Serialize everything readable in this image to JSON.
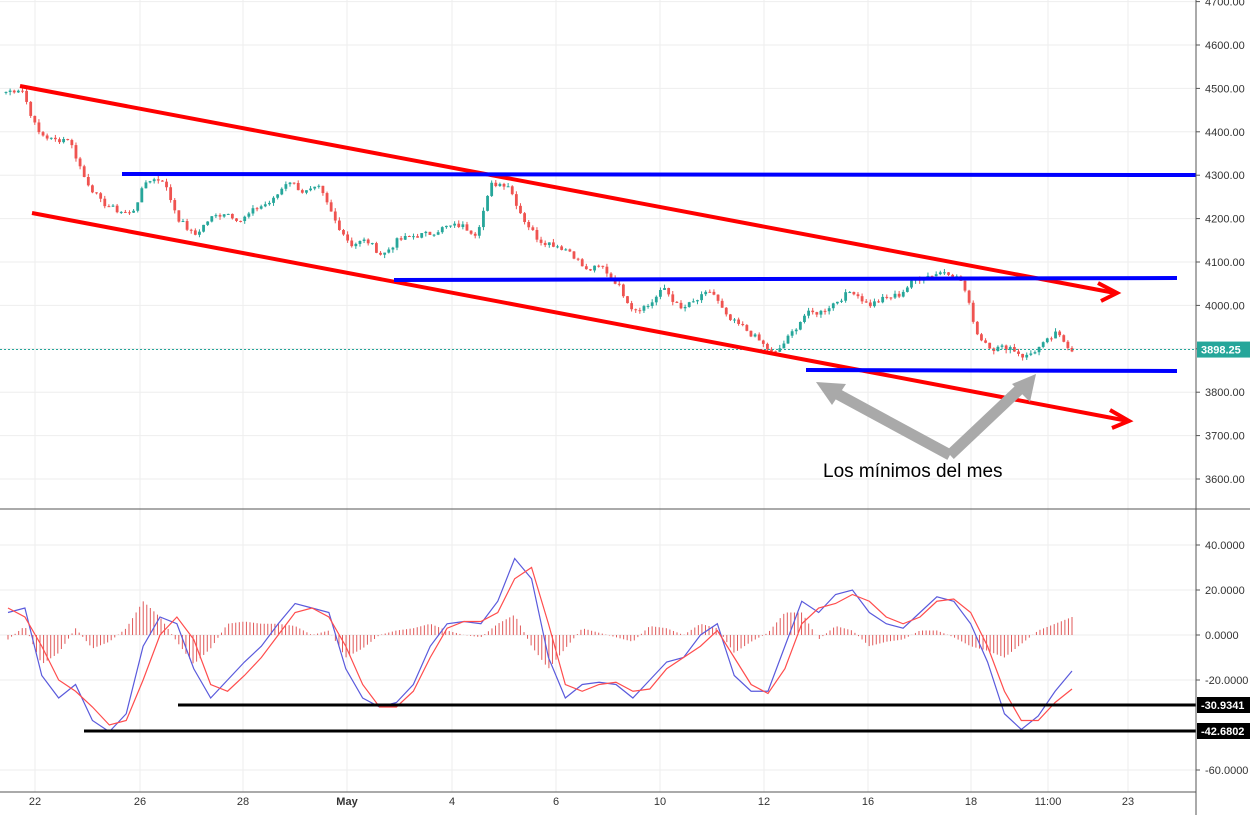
{
  "chart_data": {
    "price_panel": {
      "type": "candlestick",
      "yticks": [
        "4700.00",
        "4600.00",
        "4500.00",
        "4400.00",
        "4300.00",
        "4200.00",
        "4100.00",
        "4000.00",
        "3900.00",
        "3800.00",
        "3700.00",
        "3600.00"
      ],
      "ytick_values": [
        4700,
        4600,
        4500,
        4400,
        4300,
        4200,
        4100,
        4000,
        3900,
        3800,
        3700,
        3600
      ],
      "ylim": [
        3535,
        4715
      ],
      "last_price": "3898.25",
      "last_price_value": 3898.25,
      "annotation": "Los mínimos del mes",
      "series_close_path": [
        [
          0,
          4492
        ],
        [
          1,
          4500
        ],
        [
          2,
          4400
        ],
        [
          3,
          4380
        ],
        [
          4,
          4385
        ],
        [
          5,
          4295
        ],
        [
          6,
          4240
        ],
        [
          7,
          4220
        ],
        [
          8,
          4210
        ],
        [
          9,
          4290
        ],
        [
          10,
          4290
        ],
        [
          11,
          4200
        ],
        [
          12,
          4160
        ],
        [
          13,
          4200
        ],
        [
          14,
          4215
        ],
        [
          15,
          4195
        ],
        [
          16,
          4225
        ],
        [
          17,
          4240
        ],
        [
          18,
          4290
        ],
        [
          19,
          4260
        ],
        [
          20,
          4270
        ],
        [
          21,
          4195
        ],
        [
          22,
          4140
        ],
        [
          23,
          4150
        ],
        [
          24,
          4115
        ],
        [
          25,
          4150
        ],
        [
          26,
          4160
        ],
        [
          27,
          4165
        ],
        [
          28,
          4180
        ],
        [
          29,
          4185
        ],
        [
          30,
          4165
        ],
        [
          31,
          4280
        ],
        [
          32,
          4280
        ],
        [
          33,
          4200
        ],
        [
          34,
          4150
        ],
        [
          35,
          4140
        ],
        [
          36,
          4125
        ],
        [
          37,
          4080
        ],
        [
          38,
          4090
        ],
        [
          39,
          4050
        ],
        [
          40,
          3990
        ],
        [
          41,
          4000
        ],
        [
          42,
          4040
        ],
        [
          43,
          3990
        ],
        [
          44,
          4010
        ],
        [
          45,
          4035
        ],
        [
          46,
          3970
        ],
        [
          47,
          3950
        ],
        [
          48,
          3920
        ],
        [
          49,
          3885
        ],
        [
          50,
          3930
        ],
        [
          51,
          3980
        ],
        [
          52,
          3985
        ],
        [
          53,
          4010
        ],
        [
          54,
          4035
        ],
        [
          55,
          4000
        ],
        [
          56,
          4015
        ],
        [
          57,
          4025
        ],
        [
          58,
          4060
        ],
        [
          59,
          4070
        ],
        [
          60,
          4080
        ],
        [
          61,
          4055
        ],
        [
          62,
          3930
        ],
        [
          63,
          3900
        ],
        [
          64,
          3905
        ],
        [
          65,
          3880
        ],
        [
          66,
          3905
        ],
        [
          67,
          3935
        ],
        [
          68,
          3898
        ]
      ]
    },
    "indicator_panel": {
      "type": "macd",
      "yticks": [
        "40.0000",
        "20.0000",
        "0.0000",
        "-20.0000",
        "-60.0000"
      ],
      "ytick_values": [
        40,
        20,
        0,
        -20,
        -60
      ],
      "ylim": [
        -70,
        55
      ],
      "level_labels": [
        "-30.9341",
        "-42.6802"
      ],
      "level_values": [
        -30.9341,
        -42.6802
      ],
      "macd_series": [
        [
          0,
          10
        ],
        [
          1,
          12
        ],
        [
          2,
          -18
        ],
        [
          3,
          -28
        ],
        [
          4,
          -22
        ],
        [
          5,
          -38
        ],
        [
          6,
          -43
        ],
        [
          7,
          -35
        ],
        [
          8,
          -5
        ],
        [
          9,
          8
        ],
        [
          10,
          5
        ],
        [
          11,
          -15
        ],
        [
          12,
          -28
        ],
        [
          13,
          -20
        ],
        [
          14,
          -12
        ],
        [
          15,
          -5
        ],
        [
          16,
          5
        ],
        [
          17,
          14
        ],
        [
          18,
          12
        ],
        [
          19,
          10
        ],
        [
          20,
          -15
        ],
        [
          21,
          -28
        ],
        [
          22,
          -32
        ],
        [
          23,
          -30
        ],
        [
          24,
          -22
        ],
        [
          25,
          -5
        ],
        [
          26,
          5
        ],
        [
          27,
          6
        ],
        [
          28,
          5
        ],
        [
          29,
          15
        ],
        [
          30,
          34
        ],
        [
          31,
          25
        ],
        [
          32,
          -10
        ],
        [
          33,
          -28
        ],
        [
          34,
          -22
        ],
        [
          35,
          -21
        ],
        [
          36,
          -22
        ],
        [
          37,
          -28
        ],
        [
          38,
          -20
        ],
        [
          39,
          -12
        ],
        [
          40,
          -10
        ],
        [
          41,
          0
        ],
        [
          42,
          5
        ],
        [
          43,
          -18
        ],
        [
          44,
          -25
        ],
        [
          45,
          -25
        ],
        [
          46,
          -5
        ],
        [
          47,
          15
        ],
        [
          48,
          10
        ],
        [
          49,
          18
        ],
        [
          50,
          20
        ],
        [
          51,
          10
        ],
        [
          52,
          5
        ],
        [
          53,
          3
        ],
        [
          54,
          10
        ],
        [
          55,
          17
        ],
        [
          56,
          15
        ],
        [
          57,
          5
        ],
        [
          58,
          -12
        ],
        [
          59,
          -35
        ],
        [
          60,
          -42
        ],
        [
          61,
          -36
        ],
        [
          62,
          -25
        ],
        [
          63,
          -16
        ]
      ],
      "signal_series": [
        [
          0,
          12
        ],
        [
          1,
          8
        ],
        [
          2,
          -5
        ],
        [
          3,
          -20
        ],
        [
          4,
          -25
        ],
        [
          5,
          -32
        ],
        [
          6,
          -40
        ],
        [
          7,
          -38
        ],
        [
          8,
          -20
        ],
        [
          9,
          0
        ],
        [
          10,
          8
        ],
        [
          11,
          -2
        ],
        [
          12,
          -22
        ],
        [
          13,
          -25
        ],
        [
          14,
          -18
        ],
        [
          15,
          -10
        ],
        [
          16,
          0
        ],
        [
          17,
          10
        ],
        [
          18,
          12
        ],
        [
          19,
          8
        ],
        [
          20,
          -5
        ],
        [
          21,
          -22
        ],
        [
          22,
          -32
        ],
        [
          23,
          -32
        ],
        [
          24,
          -25
        ],
        [
          25,
          -10
        ],
        [
          26,
          3
        ],
        [
          27,
          6
        ],
        [
          28,
          6
        ],
        [
          29,
          10
        ],
        [
          30,
          25
        ],
        [
          31,
          30
        ],
        [
          32,
          5
        ],
        [
          33,
          -22
        ],
        [
          34,
          -25
        ],
        [
          35,
          -22
        ],
        [
          36,
          -21
        ],
        [
          37,
          -25
        ],
        [
          38,
          -24
        ],
        [
          39,
          -15
        ],
        [
          40,
          -10
        ],
        [
          41,
          -5
        ],
        [
          42,
          2
        ],
        [
          43,
          -10
        ],
        [
          44,
          -22
        ],
        [
          45,
          -26
        ],
        [
          46,
          -15
        ],
        [
          47,
          5
        ],
        [
          48,
          12
        ],
        [
          49,
          14
        ],
        [
          50,
          18
        ],
        [
          51,
          15
        ],
        [
          52,
          8
        ],
        [
          53,
          5
        ],
        [
          54,
          8
        ],
        [
          55,
          15
        ],
        [
          56,
          16
        ],
        [
          57,
          10
        ],
        [
          58,
          -5
        ],
        [
          59,
          -25
        ],
        [
          60,
          -38
        ],
        [
          61,
          -38
        ],
        [
          62,
          -30
        ],
        [
          63,
          -24
        ]
      ]
    },
    "xticks": [
      "22",
      "26",
      "28",
      "May",
      "4",
      "6",
      "10",
      "12",
      "16",
      "18",
      "11:00",
      "23"
    ]
  },
  "colors": {
    "up": "#26a69a",
    "down": "#ef5350",
    "channel": "#ff0000",
    "level": "#0000ff",
    "arrow": "#a9a9a9",
    "macd": "#5a5adc",
    "signal": "#ff4d4d",
    "price_line": "#26a69a"
  }
}
